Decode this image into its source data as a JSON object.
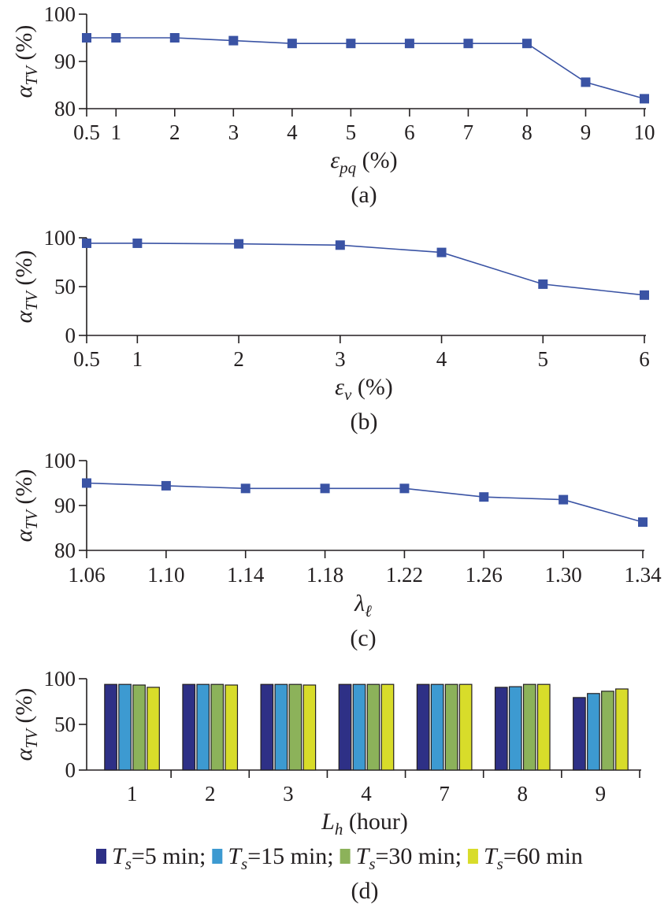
{
  "chart_data": [
    {
      "type": "line",
      "panel_caption": "(a)",
      "x_tick_labels": [
        "0.5",
        "1",
        "2",
        "3",
        "4",
        "5",
        "6",
        "7",
        "8",
        "9",
        "10"
      ],
      "x": [
        0.5,
        1,
        2,
        3,
        4,
        5,
        6,
        7,
        8,
        9,
        10
      ],
      "values": [
        95.0,
        95.0,
        95.0,
        94.4,
        93.8,
        93.8,
        93.8,
        93.8,
        93.8,
        85.6,
        82.1
      ],
      "ylim": [
        80,
        100
      ],
      "yticks": [
        80,
        90,
        100
      ],
      "ylabel": {
        "sym": "α",
        "sub": "TV",
        "unit": " (%)"
      },
      "xlabel": {
        "sym": "ε",
        "sub": "pq",
        "unit": " (%)"
      },
      "color": "#3a53a4"
    },
    {
      "type": "line",
      "panel_caption": "(b)",
      "x_tick_labels": [
        "0.5",
        "1",
        "2",
        "3",
        "4",
        "5",
        "6"
      ],
      "x": [
        0.5,
        1,
        2,
        3,
        4,
        5,
        6
      ],
      "values": [
        94.4,
        94.4,
        93.8,
        92.5,
        85.0,
        52.5,
        41.3
      ],
      "ylim": [
        0,
        100
      ],
      "yticks": [
        0,
        50,
        100
      ],
      "ylabel": {
        "sym": "α",
        "sub": "TV",
        "unit": " (%)"
      },
      "xlabel": {
        "sym": "ε",
        "sub": "v",
        "unit": " (%)"
      },
      "color": "#3a53a4"
    },
    {
      "type": "line",
      "panel_caption": "(c)",
      "x_tick_labels": [
        "1.06",
        "1.10",
        "1.14",
        "1.18",
        "1.22",
        "1.26",
        "1.30",
        "1.34"
      ],
      "x": [
        1.06,
        1.1,
        1.14,
        1.18,
        1.22,
        1.26,
        1.3,
        1.34
      ],
      "values": [
        95.0,
        94.4,
        93.8,
        93.8,
        93.8,
        91.9,
        91.3,
        86.3
      ],
      "ylim": [
        80,
        100
      ],
      "yticks": [
        80,
        90,
        100
      ],
      "ylabel": {
        "sym": "α",
        "sub": "TV",
        "unit": " (%)"
      },
      "xlabel": {
        "sym": "λ",
        "sub": "ℓ",
        "unit": ""
      },
      "color": "#3a53a4"
    },
    {
      "type": "bar",
      "panel_caption": "(d)",
      "categories": [
        "1",
        "2",
        "3",
        "4",
        "7",
        "8",
        "9"
      ],
      "series": [
        {
          "name": "=5 min;",
          "values": [
            93.8,
            93.8,
            93.8,
            93.8,
            93.8,
            90.6,
            79.4
          ],
          "color": "#2e3086"
        },
        {
          "name": "=15 min;",
          "values": [
            93.8,
            93.8,
            93.8,
            93.8,
            93.8,
            91.3,
            83.8
          ],
          "color": "#3d9ad1"
        },
        {
          "name": "=30 min;",
          "values": [
            93.1,
            93.8,
            93.8,
            93.8,
            93.8,
            93.8,
            86.3
          ],
          "color": "#8cb25a"
        },
        {
          "name": "=60 min",
          "values": [
            90.6,
            93.1,
            93.1,
            93.8,
            93.8,
            93.8,
            88.8
          ],
          "color": "#d8dc2a"
        }
      ],
      "ylim": [
        0,
        100
      ],
      "yticks": [
        0,
        50,
        100
      ],
      "ylabel": {
        "sym": "α",
        "sub": "TV",
        "unit": " (%)"
      },
      "xlabel": {
        "sym": "L",
        "sub": "h",
        "unit": " (hour)"
      },
      "legend_symbol": {
        "sym": "T",
        "sub": "s"
      },
      "legend_position": "bottom"
    }
  ]
}
